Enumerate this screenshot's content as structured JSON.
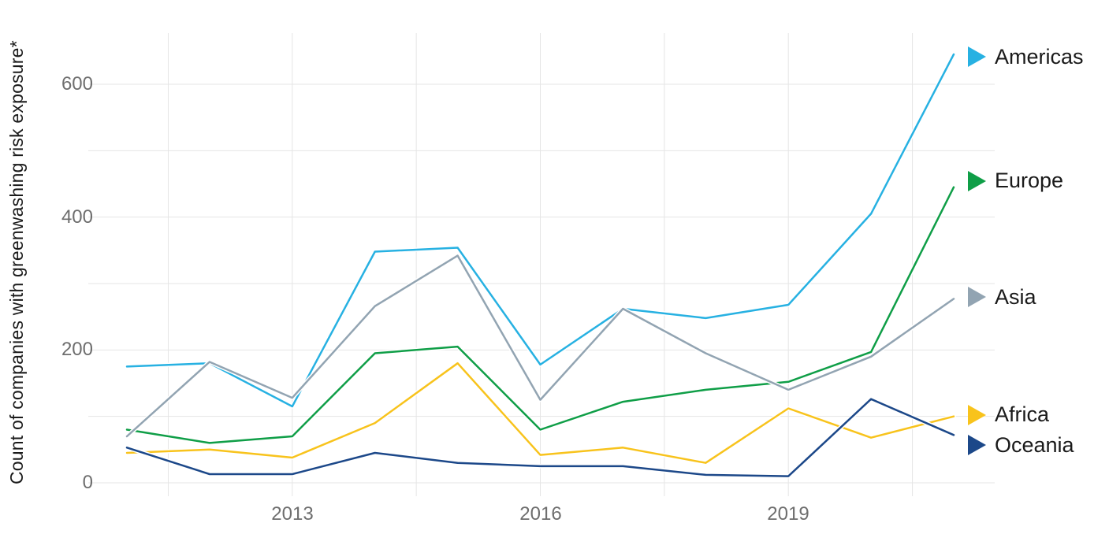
{
  "chart_data": {
    "type": "line",
    "title": "",
    "xlabel": "",
    "ylabel": "Count of companies with greenwashing risk exposure*",
    "x": [
      2011,
      2012,
      2013,
      2014,
      2015,
      2016,
      2017,
      2018,
      2019,
      2020,
      2021
    ],
    "series": [
      {
        "name": "Americas",
        "color": "#27b1e2",
        "values": [
          175,
          180,
          115,
          348,
          354,
          178,
          262,
          248,
          268,
          405,
          645
        ]
      },
      {
        "name": "Europe",
        "color": "#0f9e47",
        "values": [
          80,
          60,
          70,
          195,
          205,
          80,
          122,
          140,
          152,
          197,
          445
        ]
      },
      {
        "name": "Asia",
        "color": "#92a4b2",
        "values": [
          70,
          182,
          128,
          266,
          342,
          125,
          262,
          195,
          140,
          190,
          277
        ]
      },
      {
        "name": "Africa",
        "color": "#f8c31c",
        "values": [
          45,
          50,
          38,
          90,
          180,
          42,
          53,
          30,
          112,
          68,
          100
        ]
      },
      {
        "name": "Oceania",
        "color": "#1c4889",
        "values": [
          53,
          13,
          13,
          45,
          30,
          25,
          25,
          12,
          10,
          126,
          72
        ]
      }
    ],
    "ylim": [
      0,
      600
    ],
    "xlim": [
      2011,
      2021
    ],
    "yticks_labeled": [
      0,
      200,
      400,
      600
    ],
    "gridlines_y_values": [
      0,
      100,
      200,
      300,
      400,
      500,
      600
    ],
    "xticks_labeled": [
      2013,
      2016,
      2019
    ],
    "gridlines_x_years": [
      2011.5,
      2013,
      2014.5,
      2016,
      2017.5,
      2019,
      2020.5
    ],
    "grid": true,
    "legend_position": "right",
    "legend_marker": "right-triangle"
  },
  "axis": {
    "y_tick_labels": [
      "600",
      "400",
      "200",
      "0"
    ],
    "x_tick_labels": [
      "2013",
      "2016",
      "2019"
    ]
  },
  "colors": {
    "background": "#ffffff",
    "gridline": "#e5e5e5",
    "tick_text": "#6e6e6e",
    "label_text": "#1a1a1a",
    "line_casing": "#ffffff"
  }
}
